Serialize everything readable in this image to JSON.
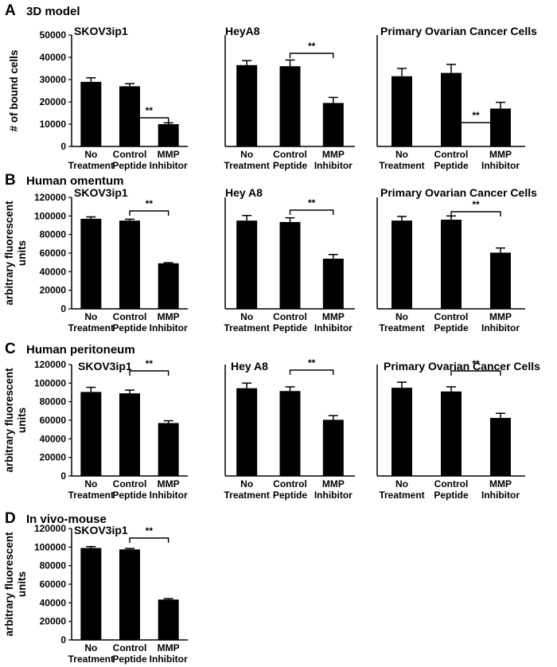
{
  "panels": [
    {
      "label": "A",
      "title": "3D model"
    },
    {
      "label": "B",
      "title": "Human omentum"
    },
    {
      "label": "C",
      "title": "Human peritoneum"
    },
    {
      "label": "D",
      "title": "In vivo-mouse"
    }
  ],
  "chart_data": [
    {
      "type": "bar",
      "panel": "A",
      "title": "SKOV3ip1",
      "categories": [
        [
          "No",
          "Treatment"
        ],
        [
          "Control",
          "Peptide"
        ],
        [
          "MMP",
          "Inhibitor"
        ]
      ],
      "values": [
        29000,
        27000,
        10000
      ],
      "errors": [
        1800,
        1200,
        600
      ],
      "ylabel": [
        "# of bound cells"
      ],
      "ylim": [
        0,
        50000
      ],
      "yticks": [
        0,
        10000,
        20000,
        30000,
        40000,
        50000
      ],
      "significance": [
        {
          "from": 1,
          "to": 2,
          "label": "**"
        }
      ]
    },
    {
      "type": "bar",
      "panel": "A",
      "title": "HeyA8",
      "categories": [
        [
          "No",
          "Treatment"
        ],
        [
          "Control",
          "Peptide"
        ],
        [
          "MMP",
          "Inhibitor"
        ]
      ],
      "values": [
        36500,
        36000,
        19500
      ],
      "errors": [
        2000,
        2800,
        2500
      ],
      "ylim": [
        0,
        50000
      ],
      "significance": [
        {
          "from": 1,
          "to": 2,
          "label": "**"
        }
      ]
    },
    {
      "type": "bar",
      "panel": "A",
      "title": "Primary Ovarian Cancer Cells",
      "categories": [
        [
          "No",
          "Treatment"
        ],
        [
          "Control",
          "Peptide"
        ],
        [
          "MMP",
          "Inhibitor"
        ]
      ],
      "values": [
        31500,
        33000,
        17000
      ],
      "errors": [
        3500,
        3800,
        2800
      ],
      "ylim": [
        0,
        50000
      ],
      "significance": [
        {
          "from": 1,
          "to": 2,
          "label": "**"
        }
      ]
    },
    {
      "type": "bar",
      "panel": "B",
      "title": "SKOV3ip1",
      "categories": [
        [
          "No",
          "Treatment"
        ],
        [
          "Control",
          "Peptide"
        ],
        [
          "MMP",
          "Inhibitor"
        ]
      ],
      "values": [
        97000,
        95000,
        49000
      ],
      "errors": [
        2000,
        1500,
        700
      ],
      "ylabel": [
        "arbitrary fluorescent",
        "units"
      ],
      "ylim": [
        0,
        120000
      ],
      "yticks": [
        0,
        20000,
        40000,
        60000,
        80000,
        100000,
        120000
      ],
      "significance": [
        {
          "from": 1,
          "to": 2,
          "label": "**"
        }
      ]
    },
    {
      "type": "bar",
      "panel": "B",
      "title": "Hey A8",
      "categories": [
        [
          "No",
          "Treatment"
        ],
        [
          "Control",
          "Peptide"
        ],
        [
          "MMP",
          "Inhibitor"
        ]
      ],
      "values": [
        95000,
        93500,
        54000
      ],
      "errors": [
        5500,
        4500,
        4500
      ],
      "ylim": [
        0,
        120000
      ],
      "significance": [
        {
          "from": 1,
          "to": 2,
          "label": "**"
        }
      ]
    },
    {
      "type": "bar",
      "panel": "B",
      "title": "Primary Ovarian Cancer Cells",
      "categories": [
        [
          "No",
          "Treatment"
        ],
        [
          "Control",
          "Peptide"
        ],
        [
          "MMP",
          "Inhibitor"
        ]
      ],
      "values": [
        95000,
        96000,
        60500
      ],
      "errors": [
        4500,
        4000,
        5000
      ],
      "ylim": [
        0,
        120000
      ],
      "significance": [
        {
          "from": 1,
          "to": 2,
          "label": "**"
        }
      ]
    },
    {
      "type": "bar",
      "panel": "C",
      "title": "SKOV3ip1",
      "categories": [
        [
          "No",
          "Treatment"
        ],
        [
          "Control",
          "Peptide"
        ],
        [
          "MMP",
          "Inhibitor"
        ]
      ],
      "values": [
        90500,
        89000,
        57000
      ],
      "errors": [
        5000,
        3500,
        2500
      ],
      "ylabel": [
        "arbitrary fluorescent",
        "units"
      ],
      "ylim": [
        0,
        120000
      ],
      "yticks": [
        0,
        20000,
        40000,
        60000,
        80000,
        100000,
        120000
      ],
      "significance": [
        {
          "from": 1,
          "to": 2,
          "label": "**"
        }
      ]
    },
    {
      "type": "bar",
      "panel": "C",
      "title": "Hey A8",
      "categories": [
        [
          "No",
          "Treatment"
        ],
        [
          "Control",
          "Peptide"
        ],
        [
          "MMP",
          "Inhibitor"
        ]
      ],
      "values": [
        94500,
        91500,
        60500
      ],
      "errors": [
        5500,
        4500,
        4500
      ],
      "ylim": [
        0,
        120000
      ],
      "significance": [
        {
          "from": 1,
          "to": 2,
          "label": "**"
        }
      ]
    },
    {
      "type": "bar",
      "panel": "C",
      "title": "Primary Ovarian Cancer Cells",
      "categories": [
        [
          "No",
          "Treatment"
        ],
        [
          "Control",
          "Peptide"
        ],
        [
          "MMP",
          "Inhibitor"
        ]
      ],
      "values": [
        95000,
        91000,
        62500
      ],
      "errors": [
        6000,
        5000,
        5000
      ],
      "ylim": [
        0,
        120000
      ],
      "significance": [
        {
          "from": 1,
          "to": 2,
          "label": "**"
        }
      ]
    },
    {
      "type": "bar",
      "panel": "D",
      "title": "SKOV3ip1",
      "categories": [
        [
          "No",
          "Treatment"
        ],
        [
          "Control",
          "Peptide"
        ],
        [
          "MMP",
          "Inhibitor"
        ]
      ],
      "values": [
        99000,
        97500,
        43500
      ],
      "errors": [
        1500,
        1000,
        1000
      ],
      "ylabel": [
        "arbitrary fluorescent",
        "units"
      ],
      "ylim": [
        0,
        120000
      ],
      "yticks": [
        0,
        20000,
        40000,
        60000,
        80000,
        100000,
        120000
      ],
      "significance": [
        {
          "from": 1,
          "to": 2,
          "label": "**"
        }
      ]
    }
  ]
}
